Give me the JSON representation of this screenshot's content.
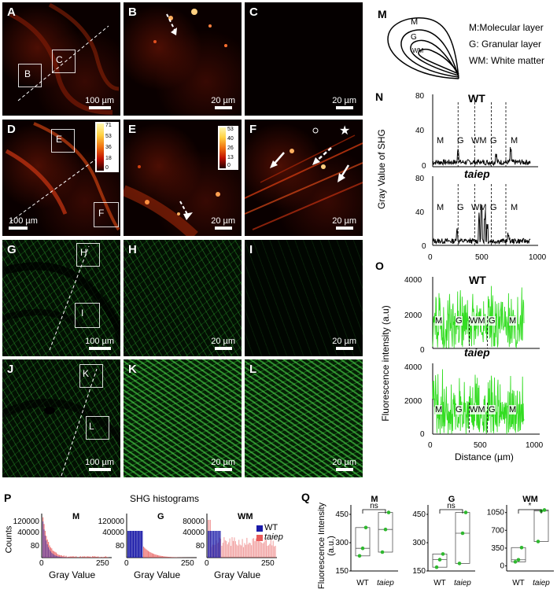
{
  "panels": {
    "A": {
      "label": "A",
      "scale": "100 µm",
      "boxes": [
        "B",
        "C"
      ]
    },
    "B": {
      "label": "B",
      "scale": "20 µm"
    },
    "C": {
      "label": "C",
      "scale": "20 µm"
    },
    "D": {
      "label": "D",
      "scale": "100 µm",
      "boxes": [
        "E",
        "F"
      ],
      "colorbar": [
        "71",
        "53",
        "36",
        "18",
        "0"
      ]
    },
    "E": {
      "label": "E",
      "scale": "20 µm",
      "colorbar": [
        "53",
        "40",
        "26",
        "13",
        "0"
      ]
    },
    "F": {
      "label": "F",
      "scale": "20 µm",
      "star": "★"
    },
    "G": {
      "label": "G",
      "scale": "100 µm",
      "boxes": [
        "H",
        "I"
      ]
    },
    "H": {
      "label": "H",
      "scale": "20 µm"
    },
    "I": {
      "label": "I",
      "scale": "20 µm"
    },
    "J": {
      "label": "J",
      "scale": "100 µm",
      "boxes": [
        "K",
        "L"
      ]
    },
    "K": {
      "label": "K",
      "scale": "20 µm"
    },
    "L": {
      "label": "L",
      "scale": "20 µm"
    }
  },
  "M": {
    "label": "M",
    "diagram_letters": [
      "M",
      "G",
      "WM"
    ],
    "legend": [
      "M:Molecular layer",
      "G: Granular layer",
      "WM: White matter"
    ]
  },
  "N": {
    "label": "N",
    "ylabel": "Gray Value of SHG",
    "wt_title": "WT",
    "taiep_title": "taiep",
    "yticks": [
      "0",
      "40",
      "80"
    ],
    "xticks": [
      "0",
      "500",
      "1000"
    ],
    "regions": [
      "M",
      "G",
      "WM",
      "G",
      "M"
    ]
  },
  "O": {
    "label": "O",
    "ylabel": "Fluorescence intensity (a.u)",
    "xlabel": "Distance (µm)",
    "wt_title": "WT",
    "taiep_title": "taiep",
    "yticks": [
      "0",
      "2000",
      "4000"
    ],
    "xticks": [
      "0",
      "500",
      "1000"
    ],
    "regions": [
      "M",
      "G",
      "WM",
      "G",
      "M"
    ]
  },
  "P": {
    "label": "P",
    "title": "SHG histograms",
    "ylabel": "Counts",
    "xlabel": "Gray Value",
    "subplots": [
      {
        "name": "M",
        "yticks": [
          "120000",
          "40000",
          "80"
        ],
        "xticks": [
          "0",
          "250"
        ]
      },
      {
        "name": "G",
        "yticks": [
          "120000",
          "40000",
          "80"
        ],
        "xticks": [
          "0",
          "250"
        ]
      },
      {
        "name": "WM",
        "yticks": [
          "80000",
          "40000",
          "80"
        ],
        "xticks": [
          "0",
          "250"
        ]
      }
    ],
    "legend": [
      {
        "name": "WT",
        "color": "#1a1aa8"
      },
      {
        "name": "taiep",
        "color": "#e85a5a"
      }
    ]
  },
  "Q": {
    "label": "Q",
    "ylabel": "Fluorescence Intensity (a.u.)",
    "subplots": [
      {
        "name": "M",
        "yticks": [
          "150",
          "300",
          "450"
        ],
        "sig": "ns",
        "xlabels": [
          "WT",
          "taiep"
        ]
      },
      {
        "name": "G",
        "yticks": [
          "150",
          "300",
          "450"
        ],
        "sig": "ns",
        "xlabels": [
          "WT",
          "taiep"
        ]
      },
      {
        "name": "WM",
        "yticks": [
          "0",
          "350",
          "700",
          "1050"
        ],
        "sig": "*",
        "xlabels": [
          "WT",
          "taiep"
        ]
      }
    ]
  },
  "chart_data": [
    {
      "type": "box",
      "title": "M",
      "categories": [
        "WT",
        "taiep"
      ],
      "points": {
        "WT": [
          230,
          270,
          380
        ],
        "taiep": [
          250,
          370,
          460
        ]
      },
      "ylim": [
        150,
        500
      ]
    },
    {
      "type": "box",
      "title": "G",
      "categories": [
        "WT",
        "taiep"
      ],
      "points": {
        "WT": [
          170,
          210,
          240
        ],
        "taiep": [
          190,
          350,
          460
        ]
      },
      "ylim": [
        150,
        500
      ]
    },
    {
      "type": "box",
      "title": "WM",
      "categories": [
        "WT",
        "taiep"
      ],
      "points": {
        "WT": [
          80,
          120,
          360
        ],
        "taiep": [
          480,
          1080,
          1100
        ]
      },
      "ylim": [
        -100,
        1200
      ]
    }
  ],
  "colors": {
    "red_signal": "#ff5a1a",
    "green_signal": "#39d339",
    "trace_green": "#33dd22"
  }
}
